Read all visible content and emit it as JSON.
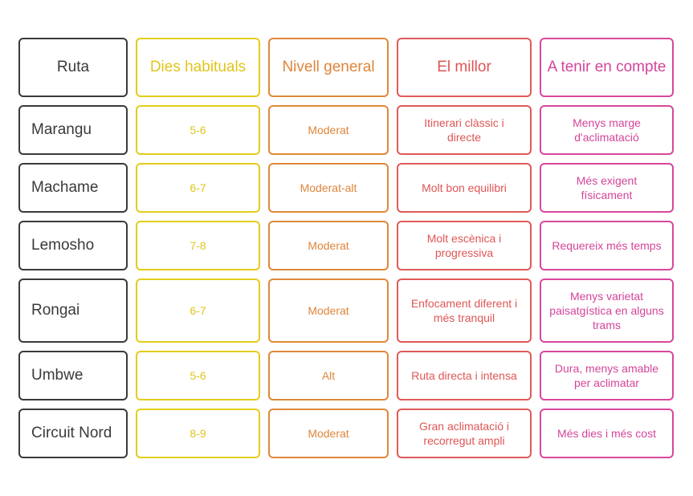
{
  "header": [
    "Ruta",
    "Dies habituals",
    "Nivell general",
    "El millor",
    "A tenir en compte"
  ],
  "rows": [
    {
      "route": "Marangu",
      "days": "5-6",
      "level": "Moderat",
      "best": "Itinerari clàssic i directe",
      "note": "Menys marge d'aclimatació"
    },
    {
      "route": "Machame",
      "days": "6-7",
      "level": "Moderat-alt",
      "best": "Molt bon equilibri",
      "note": "Més exigent físicament"
    },
    {
      "route": "Lemosho",
      "days": "7-8",
      "level": "Moderat",
      "best": "Molt escènica i progressiva",
      "note": "Requereix més temps"
    },
    {
      "route": "Rongai",
      "days": "6-7",
      "level": "Moderat",
      "best": "Enfocament diferent i més tranquil",
      "note": "Menys varietat paisatgística en alguns trams"
    },
    {
      "route": "Umbwe",
      "days": "5-6",
      "level": "Alt",
      "best": "Ruta directa i intensa",
      "note": "Dura, menys amable per aclimatar"
    },
    {
      "route": "Circuit Nord",
      "days": "8-9",
      "level": "Moderat",
      "best": "Gran aclimatació i recorregut ampli",
      "note": "Més dies i més cost"
    }
  ],
  "colors": {
    "route": "#3a3a3a",
    "days": "#e3cd1c",
    "level": "#e0883a",
    "best": "#df5a59",
    "note": "#d8479c"
  }
}
